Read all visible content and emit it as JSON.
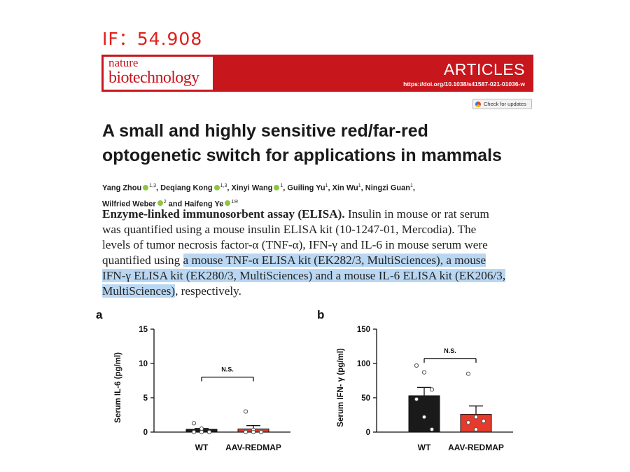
{
  "impact_factor": "IF：54.908",
  "journal": {
    "logo_line1": "nature",
    "logo_line2": "biotechnology",
    "section": "ARTICLES",
    "doi": "https://doi.org/10.1038/s41587-021-01036-w",
    "check_updates": "Check for updates"
  },
  "title_lines": [
    "A small and highly sensitive red/far-red",
    "optogenetic switch for applications in mammals"
  ],
  "authors": [
    {
      "name": "Yang Zhou",
      "orcid": true,
      "sup": "1,3",
      "sep": ", "
    },
    {
      "name": "Deqiang Kong",
      "orcid": true,
      "sup": "1,3",
      "sep": ", "
    },
    {
      "name": "Xinyi Wang",
      "orcid": true,
      "sup": "1",
      "sep": ", "
    },
    {
      "name": "Guiling Yu",
      "orcid": false,
      "sup": "1",
      "sep": ", "
    },
    {
      "name": "Xin Wu",
      "orcid": false,
      "sup": "1",
      "sep": ", "
    },
    {
      "name": "Ningzi Guan",
      "orcid": false,
      "sup": "1",
      "sep": ","
    },
    {
      "name": "Wilfried Weber",
      "orcid": true,
      "sup": "2",
      "sep": " and ",
      "newline": true
    },
    {
      "name": "Haifeng Ye",
      "orcid": true,
      "sup": "1✉",
      "sep": ""
    }
  ],
  "methods": {
    "heading": "Enzyme-linked immunosorbent assay (ELISA).",
    "line1_rest": " Insulin in mouse or rat serum",
    "line2": "was quantified using a mouse insulin ELISA kit (10-1247-01, Mercodia). The",
    "line3": "levels of tumor necrosis factor-α (TNF-α), IFN-γ and IL-6 in mouse serum were",
    "line4_plain": "quantified using ",
    "line4_hl": "a mouse TNF-α ELISA kit (EK282/3, MultiSciences), a mouse",
    "line5_hl": "IFN-γ ELISA kit (EK280/3, MultiSciences) and a mouse IL-6 ELISA kit (EK206/3,",
    "line6_hl": "MultiSciences)",
    "line6_rest": ", respectively."
  },
  "chart_data": [
    {
      "panel": "a",
      "type": "bar",
      "ylabel": "Serum IL-6 (pg/ml)",
      "ylim": [
        0,
        15
      ],
      "yticks": [
        0,
        5,
        10,
        15
      ],
      "categories": [
        "WT",
        "AAV-REDMAP"
      ],
      "values": [
        0.4,
        0.45
      ],
      "errors": [
        0.15,
        0.5
      ],
      "colors": [
        "#1a1a1a",
        "#e53a2c"
      ],
      "points": [
        [
          1.3,
          0.5,
          0.0,
          0.0,
          0.0,
          0.0
        ],
        [
          3.0,
          0.3,
          0.0,
          0.0,
          0.0,
          0.0
        ]
      ],
      "annotation": "N.S."
    },
    {
      "panel": "b",
      "type": "bar",
      "ylabel": "Serum IFN- γ (pg/ml)",
      "ylim": [
        0,
        150
      ],
      "yticks": [
        0,
        50,
        100,
        150
      ],
      "categories": [
        "WT",
        "AAV-REDMAP"
      ],
      "values": [
        53,
        26
      ],
      "errors": [
        12,
        12
      ],
      "colors": [
        "#1a1a1a",
        "#e53a2c"
      ],
      "points": [
        [
          97,
          87,
          62,
          48,
          22,
          4
        ],
        [
          85,
          22,
          16,
          14,
          4
        ]
      ],
      "annotation": "N.S."
    }
  ]
}
